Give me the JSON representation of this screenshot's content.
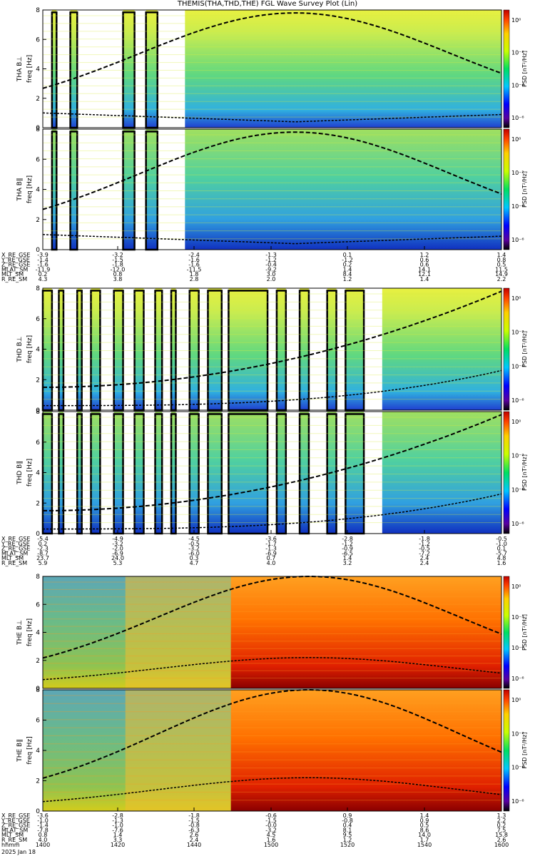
{
  "title": "THEMIS(THA,THD,THE) FGL Wave Survey Plot (Lin)",
  "date_label": "2025 Jan 18",
  "chart_data": [
    {
      "type": "heatmap",
      "probe": "THA",
      "panels": [
        {
          "ylabel_top": "THA B⊥",
          "ylabel_bottom": "freq [Hz]"
        },
        {
          "ylabel_top": "THA B∥",
          "ylabel_bottom": "freq [Hz]"
        }
      ],
      "yticks": [
        "0",
        "2",
        "4",
        "6",
        "8"
      ],
      "ylim": [
        0,
        8
      ],
      "colorbar": {
        "label": "PSD [nT²/Hz]",
        "ticks": [
          "10⁰",
          "10⁻²",
          "10⁻⁴",
          "10⁻⁶"
        ]
      },
      "colormap": "low",
      "coverage": [
        [
          0.02,
          0.03
        ],
        [
          0.06,
          0.075
        ],
        [
          0.175,
          0.2
        ],
        [
          0.225,
          0.25
        ],
        [
          0.31,
          1.0
        ]
      ],
      "ephemeris_labels": [
        "X_RE_GSE",
        "Y_RE_GSE",
        "Z_RE_GSE",
        "MLAT_SM",
        "MLT_SM",
        "R_RE_SM"
      ],
      "ephemeris": [
        [
          "-3.9",
          "-3.2",
          "-2.4",
          "-1.3",
          "0.1",
          "1.2",
          "1.4"
        ],
        [
          "-1.4",
          "-1.5",
          "-1.6",
          "-1.2",
          "-1.2",
          "0.6",
          "0.8"
        ],
        [
          "-1.6",
          "-1.8",
          "-1.6",
          "-0.4",
          "0.2",
          "0.6",
          "0.5"
        ],
        [
          "-11.9",
          "-12.0",
          "-11.5",
          "-9.2",
          "1.4",
          "14.1",
          "11.5"
        ],
        [
          "0.2",
          "0.8",
          "1.8",
          "3.0",
          "8.4",
          "12.1",
          "14.9"
        ],
        [
          "4.3",
          "3.8",
          "2.8",
          "2.0",
          "1.2",
          "1.4",
          "2.2"
        ]
      ]
    },
    {
      "type": "heatmap",
      "probe": "THD",
      "panels": [
        {
          "ylabel_top": "THD B⊥",
          "ylabel_bottom": "freq [Hz]"
        },
        {
          "ylabel_top": "THD B∥",
          "ylabel_bottom": "freq [Hz]"
        }
      ],
      "yticks": [
        "0",
        "2",
        "4",
        "6",
        "8"
      ],
      "ylim": [
        0,
        8
      ],
      "colorbar": {
        "label": "PSD [nT²/Hz]",
        "ticks": [
          "10⁰",
          "10⁻²",
          "10⁻⁴",
          "10⁻⁶"
        ]
      },
      "colormap": "low",
      "coverage": [
        [
          0.0,
          0.02
        ],
        [
          0.035,
          0.045
        ],
        [
          0.075,
          0.085
        ],
        [
          0.105,
          0.125
        ],
        [
          0.155,
          0.175
        ],
        [
          0.2,
          0.22
        ],
        [
          0.245,
          0.26
        ],
        [
          0.28,
          0.29
        ],
        [
          0.32,
          0.34
        ],
        [
          0.36,
          0.39
        ],
        [
          0.405,
          0.49
        ],
        [
          0.51,
          0.53
        ],
        [
          0.56,
          0.58
        ],
        [
          0.62,
          0.64
        ],
        [
          0.66,
          0.7
        ],
        [
          0.74,
          1.0
        ]
      ],
      "ephemeris_labels": [
        "X_RE_GSE",
        "Y_RE_GSE",
        "Z_RE_GSE",
        "MLAT_SM",
        "MLT_SM",
        "R_RE_SM"
      ],
      "ephemeris": [
        [
          "-5.4",
          "-4.9",
          "-4.5",
          "-3.6",
          "-2.8",
          "-1.8",
          "-0.5"
        ],
        [
          "0.2",
          "-3.2",
          "-0.5",
          "-1.7",
          "-1.2",
          "-1.2",
          "-1.0"
        ],
        [
          "-2.3",
          "-2.0",
          "-3.2",
          "-1.3",
          "-0.9",
          "-0.5",
          "0.1"
        ],
        [
          "-8.7",
          "-6.9",
          "-6.0",
          "-6.9",
          "-6.5",
          "-7.2",
          "-5.7"
        ],
        [
          "23.7",
          "24.0",
          "0.3",
          "0.7",
          "1.4",
          "2.4",
          "4.8"
        ],
        [
          "5.9",
          "5.3",
          "4.7",
          "4.0",
          "3.2",
          "2.4",
          "1.6"
        ]
      ]
    },
    {
      "type": "heatmap",
      "probe": "THE",
      "panels": [
        {
          "ylabel_top": "THE B⊥",
          "ylabel_bottom": "freq [Hz]"
        },
        {
          "ylabel_top": "THE B∥",
          "ylabel_bottom": "freq [Hz]"
        }
      ],
      "yticks": [
        "0",
        "2",
        "4",
        "6",
        "8"
      ],
      "ylim": [
        0,
        8
      ],
      "colorbar": {
        "label": "PSD [nT²/Hz]",
        "ticks": [
          "10⁰",
          "10⁻²",
          "10⁻⁴",
          "10⁻⁶"
        ]
      },
      "colormap": "high",
      "coverage": [
        [
          0.0,
          1.0
        ]
      ],
      "ephemeris_labels": [
        "X_RE_GSE",
        "Y_RE_GSE",
        "Z_RE_GSE",
        "MLAT_SM",
        "MLT_SM",
        "R_RE_SM",
        "hhmm"
      ],
      "ephemeris": [
        [
          "-3.6",
          "-2.8",
          "-1.8",
          "-0.6",
          "0.9",
          "1.4",
          "1.3"
        ],
        [
          "-1.0",
          "-1.3",
          "-1.5",
          "-1.5",
          "-0.8",
          "0.9",
          "2.2"
        ],
        [
          "-1.4",
          "-1.0",
          "-0.8",
          "-0.0",
          "0.4",
          "0.5",
          "0.2"
        ],
        [
          "-7.8",
          "-7.6",
          "-6.3",
          "-3.2",
          "8.1",
          "8.6",
          "7.5"
        ],
        [
          "0.8",
          "1.4",
          "2.6",
          "4.5",
          "9.5",
          "14.0",
          "15.8"
        ],
        [
          "4.0",
          "3.3",
          "2.4",
          "1.6",
          "1.2",
          "1.7",
          "2.6"
        ],
        [
          "1400",
          "1420",
          "1440",
          "1500",
          "1520",
          "1540",
          "1600"
        ]
      ]
    }
  ]
}
